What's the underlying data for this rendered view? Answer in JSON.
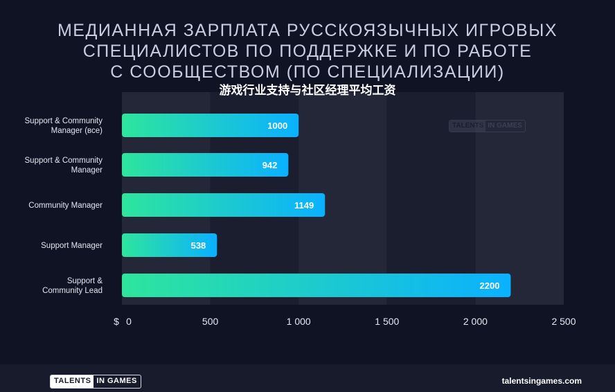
{
  "title_lines": [
    "МЕДИАННАЯ ЗАРПЛАТА РУССКОЯЗЫЧНЫХ ИГРОВЫХ",
    "СПЕЦИАЛИСТОВ ПО ПОДДЕРЖКЕ И ПО РАБОТЕ",
    "С СООБЩЕСТВОМ (ПО СПЕЦИАЛИЗАЦИИ)"
  ],
  "subtitle": "游戏行业支持与社区经理平均工资",
  "currency_symbol": "$",
  "watermark": {
    "left": "TALENTS",
    "right": "IN GAMES"
  },
  "footer": {
    "logo_left": "TALENTS",
    "logo_right": "IN GAMES",
    "website": "talentsingames.com"
  },
  "colors": {
    "background": "#0f1324",
    "plot_band_light": "#232738",
    "plot_band_dark": "#1a1e2f",
    "bar_start": "#2ee59d",
    "bar_end": "#0ab1ff",
    "footer": "#181b2c"
  },
  "chart_data": {
    "type": "bar",
    "orientation": "horizontal",
    "categories": [
      [
        "Support & Community",
        "Manager (все)"
      ],
      [
        "Support & Community",
        "Manager"
      ],
      [
        "Community Manager"
      ],
      [
        "Support Manager"
      ],
      [
        "Support &",
        "Community Lead"
      ]
    ],
    "values": [
      1000,
      942,
      1149,
      538,
      2200
    ],
    "xlim": [
      0,
      2500
    ],
    "xticks": [
      0,
      500,
      1000,
      1500,
      2000,
      2500
    ],
    "xtick_labels": [
      "0",
      "500",
      "1 000",
      "1 500",
      "2 000",
      "2 500"
    ],
    "grid": "alternating vertical bands",
    "legend": "none"
  }
}
